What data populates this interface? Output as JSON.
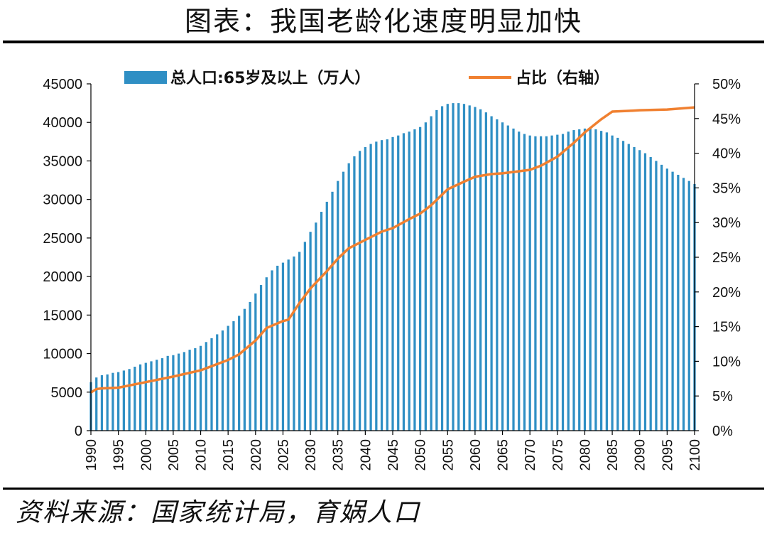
{
  "title": "图表：我国老龄化速度明显加快",
  "source": "资料来源：国家统计局，育娲人口",
  "colors": {
    "bar": "#2f8fc4",
    "line": "#f08030",
    "axis": "#000000"
  },
  "chart_data": {
    "type": "bar+line",
    "legend": {
      "placement": "top-center",
      "bar_label": "总人口:65岁及以上（万人）",
      "line_label": "占比（右轴）"
    },
    "y_left": {
      "ticks": [
        "0",
        "5000",
        "10000",
        "15000",
        "20000",
        "25000",
        "30000",
        "35000",
        "40000",
        "45000"
      ],
      "range": [
        0,
        45000
      ]
    },
    "y_right": {
      "ticks": [
        "0%",
        "5%",
        "10%",
        "15%",
        "20%",
        "25%",
        "30%",
        "35%",
        "40%",
        "45%",
        "50%"
      ],
      "range": [
        0,
        50
      ]
    },
    "x_ticks": [
      "1990",
      "1995",
      "2000",
      "2005",
      "2010",
      "2015",
      "2020",
      "2025",
      "2030",
      "2035",
      "2040",
      "2045",
      "2050",
      "2055",
      "2060",
      "2065",
      "2070",
      "2075",
      "2080",
      "2085",
      "2090",
      "2095",
      "2100"
    ],
    "x_range": [
      1990,
      2100
    ],
    "bar_series": {
      "name": "总人口:65岁及以上（万人）",
      "years": [
        1990,
        1991,
        1992,
        1993,
        1994,
        1995,
        1996,
        1997,
        1998,
        1999,
        2000,
        2001,
        2002,
        2003,
        2004,
        2005,
        2006,
        2007,
        2008,
        2009,
        2010,
        2011,
        2012,
        2013,
        2014,
        2015,
        2016,
        2017,
        2018,
        2019,
        2020,
        2021,
        2022,
        2023,
        2024,
        2025,
        2026,
        2027,
        2028,
        2029,
        2030,
        2031,
        2032,
        2033,
        2034,
        2035,
        2036,
        2037,
        2038,
        2039,
        2040,
        2041,
        2042,
        2043,
        2044,
        2045,
        2046,
        2047,
        2048,
        2049,
        2050,
        2051,
        2052,
        2053,
        2054,
        2055,
        2056,
        2057,
        2058,
        2059,
        2060,
        2061,
        2062,
        2063,
        2064,
        2065,
        2066,
        2067,
        2068,
        2069,
        2070,
        2071,
        2072,
        2073,
        2074,
        2075,
        2076,
        2077,
        2078,
        2079,
        2080,
        2081,
        2082,
        2083,
        2084,
        2085,
        2086,
        2087,
        2088,
        2089,
        2090,
        2091,
        2092,
        2093,
        2094,
        2095,
        2096,
        2097,
        2098,
        2099,
        2100
      ],
      "values": [
        6300,
        6900,
        7200,
        7300,
        7500,
        7600,
        7800,
        8000,
        8300,
        8600,
        8800,
        9000,
        9200,
        9400,
        9700,
        9800,
        10000,
        10200,
        10500,
        10700,
        11000,
        11500,
        12000,
        12500,
        13000,
        13600,
        14200,
        14900,
        15800,
        16700,
        17800,
        18900,
        19900,
        20800,
        21400,
        21800,
        22200,
        22600,
        23200,
        24500,
        25800,
        27000,
        28400,
        29700,
        31000,
        32400,
        33600,
        34700,
        35600,
        36300,
        36800,
        37200,
        37500,
        37700,
        37800,
        38100,
        38300,
        38600,
        38800,
        39100,
        39400,
        40000,
        40800,
        41600,
        42100,
        42400,
        42500,
        42500,
        42400,
        42200,
        42000,
        41700,
        41300,
        40800,
        40400,
        40000,
        39600,
        39200,
        38800,
        38500,
        38300,
        38200,
        38200,
        38200,
        38300,
        38400,
        38500,
        38800,
        39000,
        39100,
        39200,
        39200,
        39100,
        38900,
        38700,
        38300,
        38000,
        37600,
        37200,
        36800,
        36400,
        36000,
        35500,
        35000,
        34500,
        34000,
        33600,
        33200,
        32800,
        32400,
        32000
      ]
    },
    "line_series": {
      "name": "占比（右轴）",
      "years": [
        1990,
        1991,
        1992,
        1995,
        2000,
        2005,
        2010,
        2015,
        2017,
        2020,
        2022,
        2025,
        2026,
        2028,
        2030,
        2033,
        2035,
        2037,
        2040,
        2043,
        2045,
        2048,
        2050,
        2052,
        2055,
        2058,
        2060,
        2063,
        2065,
        2068,
        2070,
        2072,
        2075,
        2078,
        2080,
        2083,
        2085,
        2088,
        2090,
        2095,
        2100
      ],
      "values": [
        5.5,
        6.0,
        6.1,
        6.2,
        7.0,
        7.8,
        8.7,
        10.2,
        11.0,
        13.0,
        14.8,
        15.8,
        16.0,
        18.4,
        20.5,
        23.0,
        24.8,
        26.3,
        27.5,
        28.7,
        29.2,
        30.5,
        31.3,
        32.5,
        34.8,
        35.9,
        36.6,
        37.0,
        37.1,
        37.4,
        37.6,
        38.2,
        39.5,
        41.5,
        43.0,
        44.9,
        46.0,
        46.1,
        46.2,
        46.3,
        46.6
      ]
    }
  }
}
